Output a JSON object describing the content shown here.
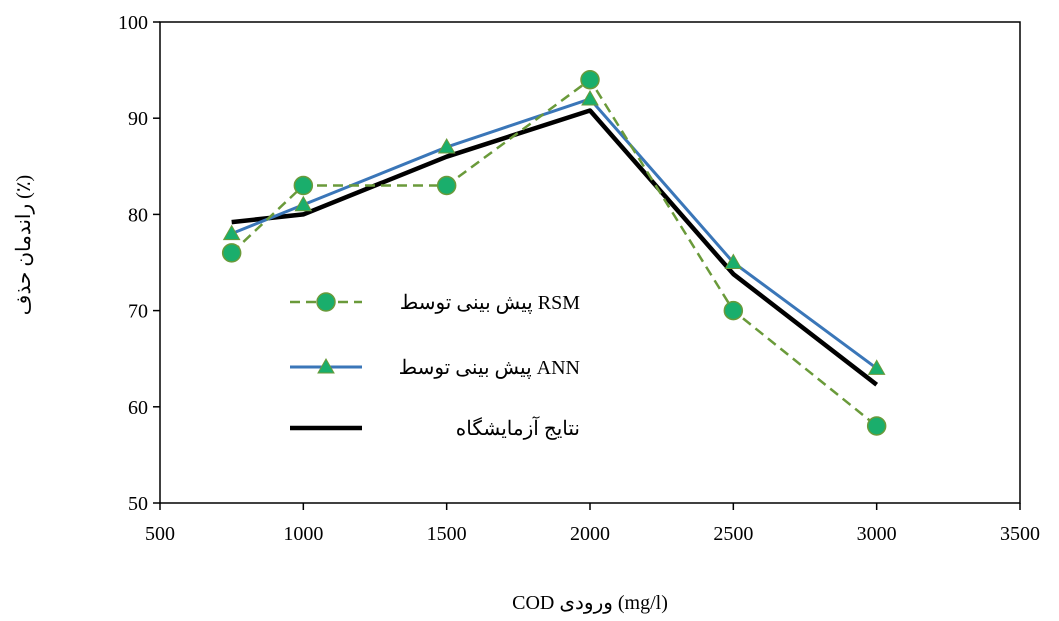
{
  "chart_data": {
    "type": "line",
    "xlabel": "COD ورودی (mg/l)",
    "ylabel": "راندمان حذف (٪)",
    "xlim": [
      500,
      3500
    ],
    "ylim": [
      50,
      100
    ],
    "xticks": [
      500,
      1000,
      1500,
      2000,
      2500,
      3000,
      3500
    ],
    "yticks": [
      50,
      60,
      70,
      80,
      90,
      100
    ],
    "grid": false,
    "legend_position": "inside-left",
    "series": [
      {
        "name": "پیش بینی توسط RSM",
        "style": "dashed-circle",
        "color": "#6a9a3a",
        "marker_color": "#1aae6c",
        "x": [
          750,
          1000,
          1500,
          2000,
          2500,
          3000
        ],
        "y": [
          76,
          83,
          83,
          94,
          70,
          58
        ]
      },
      {
        "name": "پیش بینی توسط ANN",
        "style": "solid-triangle",
        "color": "#3a76b8",
        "marker_color": "#1aae6c",
        "x": [
          750,
          1000,
          1500,
          2000,
          2500,
          3000
        ],
        "y": [
          78,
          81,
          87,
          92,
          75,
          64
        ]
      },
      {
        "name": "نتایج آزمایشگاه",
        "style": "solid-thick",
        "color": "#000000",
        "x": [
          750,
          1000,
          1500,
          2000,
          2500,
          3000
        ],
        "y": [
          79.2,
          80,
          86,
          90.8,
          73.8,
          62.3
        ]
      }
    ]
  }
}
